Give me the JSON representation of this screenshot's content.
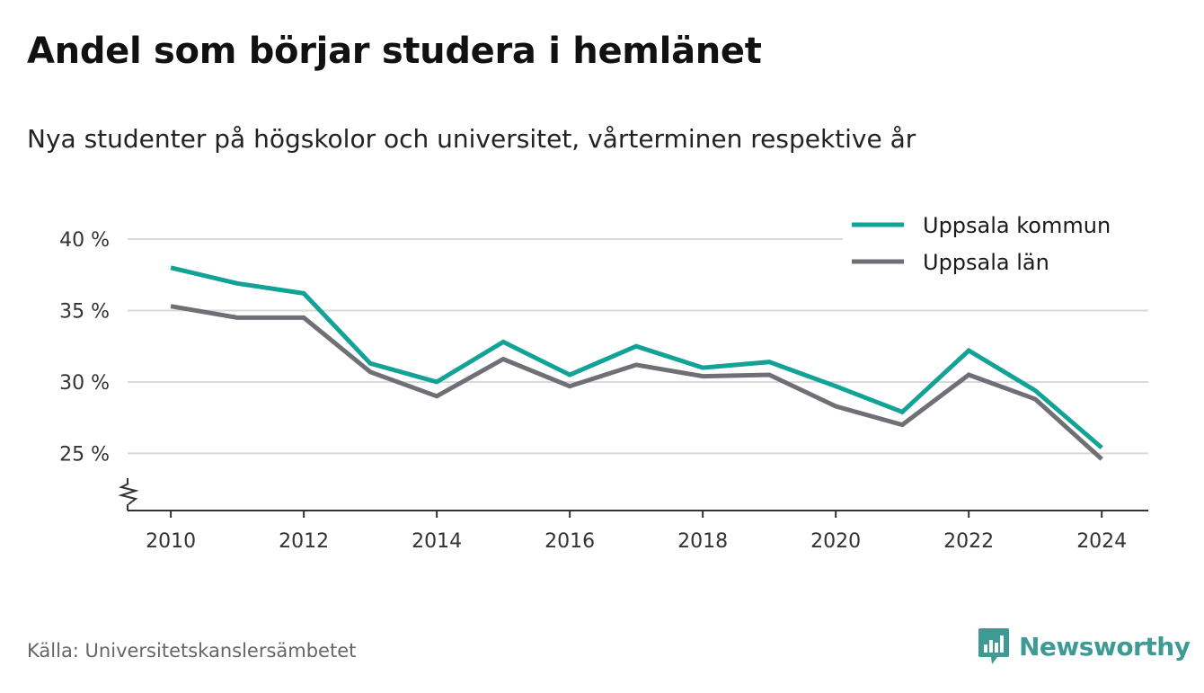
{
  "header": {
    "title": "Andel som börjar studera i hemlänet",
    "subtitle": "Nya studenter på högskolor och universitet, vårterminen respektive år"
  },
  "footer": {
    "source": "Källa: Universitetskanslersämbetet",
    "brand": "Newsworthy",
    "brand_icon": "bar-chart-badge-icon"
  },
  "colors": {
    "series_1": "#13a396",
    "series_2": "#6f6f76",
    "grid": "#d9d9d9",
    "axis": "#333333",
    "brand": "#3d9b93"
  },
  "chart_data": {
    "type": "line",
    "title": "Andel som börjar studera i hemlänet",
    "subtitle": "Nya studenter på högskolor och universitet, vårterminen respektive år",
    "xlabel": "",
    "ylabel": "",
    "x": [
      2010,
      2011,
      2012,
      2013,
      2014,
      2015,
      2016,
      2017,
      2018,
      2019,
      2020,
      2021,
      2022,
      2023,
      2024
    ],
    "series": [
      {
        "name": "Uppsala kommun",
        "values": [
          38.0,
          36.9,
          36.2,
          31.3,
          30.0,
          32.8,
          30.5,
          32.5,
          31.0,
          31.4,
          29.7,
          27.9,
          32.2,
          29.4,
          25.4
        ]
      },
      {
        "name": "Uppsala län",
        "values": [
          35.3,
          34.5,
          34.5,
          30.7,
          29.0,
          31.6,
          29.7,
          31.2,
          30.4,
          30.5,
          28.3,
          27.0,
          30.5,
          28.8,
          24.6
        ]
      }
    ],
    "xticks": [
      "2010",
      "2012",
      "2014",
      "2016",
      "2018",
      "2020",
      "2022",
      "2024"
    ],
    "xtick_values": [
      2010,
      2012,
      2014,
      2016,
      2018,
      2020,
      2022,
      2024
    ],
    "yticks": [
      "25 %",
      "30 %",
      "35 %",
      "40 %"
    ],
    "ytick_values": [
      25,
      30,
      35,
      40
    ],
    "xlim": [
      2009.35,
      2024.7
    ],
    "ylim": [
      21,
      40
    ],
    "y_axis_break": true,
    "grid": "horizontal",
    "legend_position": "top-right"
  }
}
